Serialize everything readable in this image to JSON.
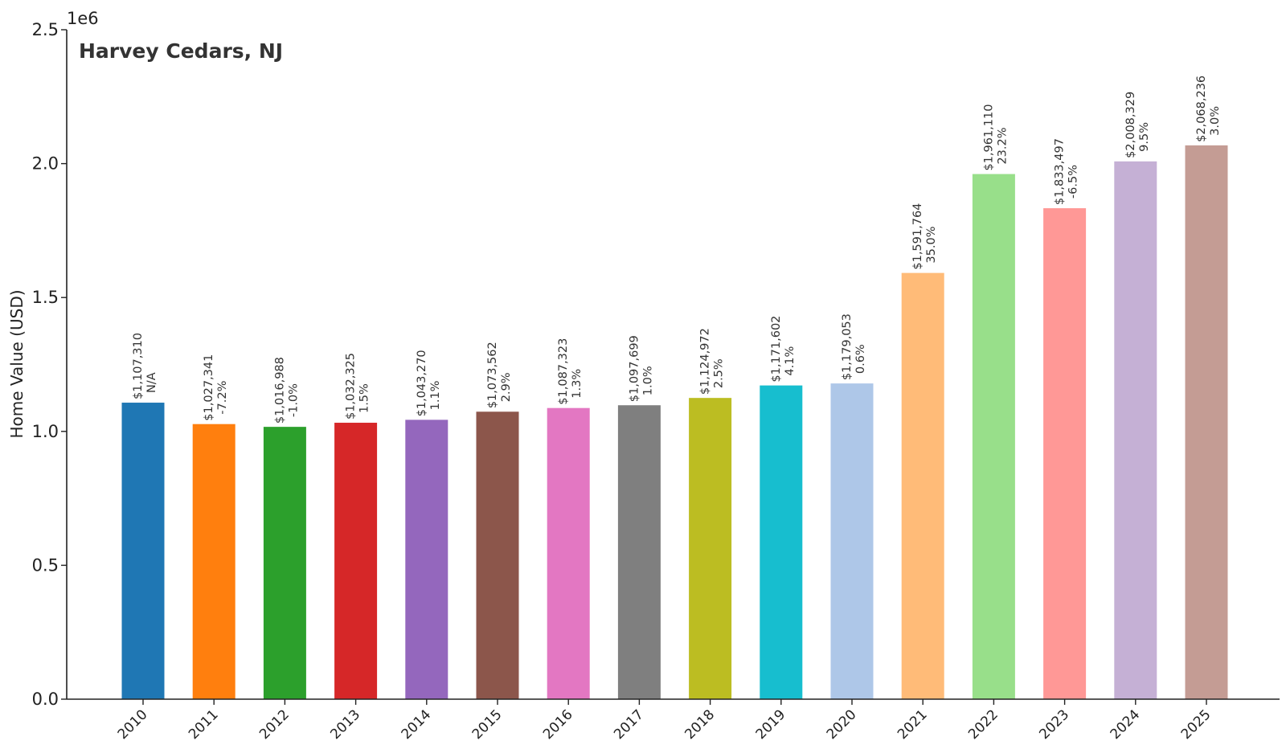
{
  "chart_data": {
    "type": "bar",
    "title": "Harvey Cedars, NJ",
    "xlabel": "",
    "ylabel": "Home Value (USD)",
    "y_offset_label": "1e6",
    "ylim": [
      0,
      2500000
    ],
    "yticks": [
      0,
      500000,
      1000000,
      1500000,
      2000000,
      2500000
    ],
    "ytick_labels": [
      "0.0",
      "0.5",
      "1.0",
      "1.5",
      "2.0",
      "2.5"
    ],
    "grid": false,
    "legend": "none",
    "categories": [
      "2010",
      "2011",
      "2012",
      "2013",
      "2014",
      "2015",
      "2016",
      "2017",
      "2018",
      "2019",
      "2020",
      "2021",
      "2022",
      "2023",
      "2024",
      "2025"
    ],
    "values": [
      1107310,
      1027341,
      1016988,
      1032325,
      1043270,
      1073562,
      1087323,
      1097699,
      1124972,
      1171602,
      1179053,
      1591764,
      1961110,
      1833497,
      2008329,
      2068236
    ],
    "value_labels": [
      "$1,107,310",
      "$1,027,341",
      "$1,016,988",
      "$1,032,325",
      "$1,043,270",
      "$1,073,562",
      "$1,087,323",
      "$1,097,699",
      "$1,124,972",
      "$1,171,602",
      "$1,179,053",
      "$1,591,764",
      "$1,961,110",
      "$1,833,497",
      "$2,008,329",
      "$2,068,236"
    ],
    "change_labels": [
      "N/A",
      "-7.2%",
      "-1.0%",
      "1.5%",
      "1.1%",
      "2.9%",
      "1.3%",
      "1.0%",
      "2.5%",
      "4.1%",
      "0.6%",
      "35.0%",
      "23.2%",
      "-6.5%",
      "9.5%",
      "3.0%"
    ],
    "colors": [
      "#1f77b4",
      "#ff7f0e",
      "#2ca02c",
      "#d62728",
      "#9467bd",
      "#8c564b",
      "#e377c2",
      "#7f7f7f",
      "#bcbd22",
      "#17becf",
      "#aec7e8",
      "#ffbb78",
      "#98df8a",
      "#ff9896",
      "#c5b0d5",
      "#c49c94"
    ]
  }
}
